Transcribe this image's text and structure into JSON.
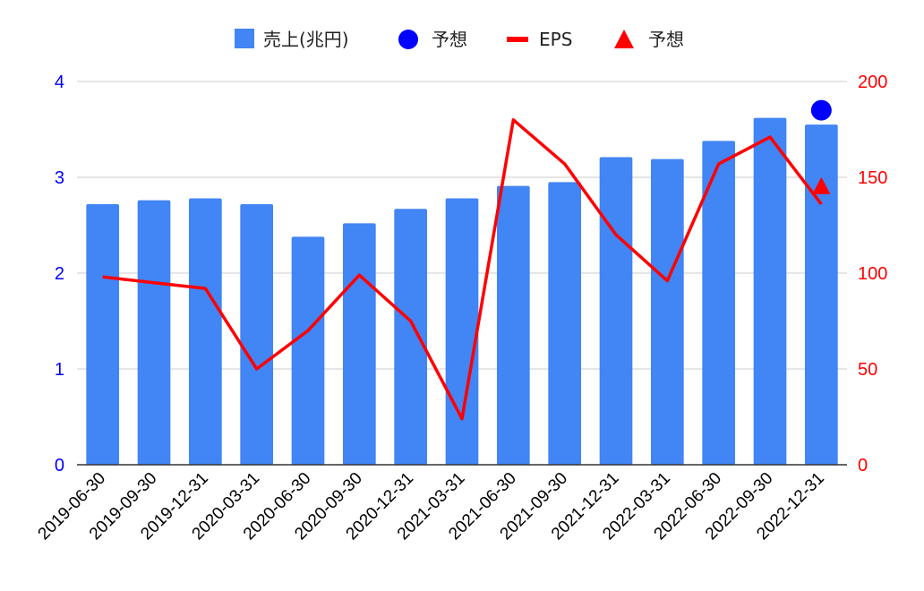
{
  "chart_data": {
    "type": "bar",
    "categories": [
      "2019-06-30",
      "2019-09-30",
      "2019-12-31",
      "2020-03-31",
      "2020-06-30",
      "2020-09-30",
      "2020-12-31",
      "2021-03-31",
      "2021-06-30",
      "2021-09-30",
      "2021-12-31",
      "2022-03-31",
      "2022-06-30",
      "2022-09-30",
      "2022-12-31"
    ],
    "series": [
      {
        "name": "売上(兆円)",
        "type": "bar",
        "axis": "left",
        "color": "#4285f4",
        "values": [
          2.72,
          2.76,
          2.78,
          2.72,
          2.38,
          2.52,
          2.67,
          2.78,
          2.91,
          2.95,
          3.21,
          3.19,
          3.38,
          3.62,
          3.55
        ]
      },
      {
        "name": "予想",
        "type": "scatter-circle",
        "axis": "left",
        "color": "#0000ff",
        "points": [
          {
            "x": "2022-12-31",
            "y": 3.7
          }
        ]
      },
      {
        "name": "EPS",
        "type": "line",
        "axis": "right",
        "color": "#ff0000",
        "values": [
          98,
          95,
          92,
          50,
          70,
          99,
          75,
          24,
          180,
          157,
          120,
          96,
          157,
          171,
          136
        ]
      },
      {
        "name": "予想",
        "type": "scatter-triangle",
        "axis": "right",
        "color": "#ff0000",
        "points": [
          {
            "x": "2022-12-31",
            "y": 145
          }
        ]
      }
    ],
    "y_left": {
      "min": 0,
      "max": 4,
      "ticks": [
        "0",
        "1",
        "2",
        "3",
        "4"
      ],
      "color": "#0000ff"
    },
    "y_right": {
      "min": 0,
      "max": 200,
      "ticks": [
        "0",
        "50",
        "100",
        "150",
        "200"
      ],
      "color": "#ff0000"
    },
    "grid": true,
    "legend": "top-center"
  }
}
